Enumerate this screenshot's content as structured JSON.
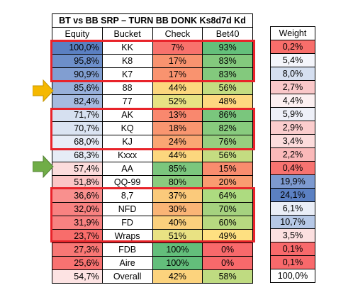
{
  "title": "BT vs BB SRP – TURN BB DONK Ks8d7d Kd",
  "headers": {
    "equity": "Equity",
    "bucket": "Bucket",
    "check": "Check",
    "bet": "Bet40",
    "weight": "Weight"
  },
  "rows": [
    {
      "equity": "100,0%",
      "bucket": "KK",
      "check": "7%",
      "bet": "93%",
      "weight": "0,2%",
      "eq_color": "#5b80c2",
      "check_color": "#f8726c",
      "bet_color": "#64c07b",
      "w_color": "#f86e6b"
    },
    {
      "equity": "95,8%",
      "bucket": "K8",
      "check": "17%",
      "bet": "83%",
      "weight": "5,4%",
      "eq_color": "#6d8fca",
      "check_color": "#f9936f",
      "bet_color": "#83c97d",
      "w_color": "#f4f5fb"
    },
    {
      "equity": "90,9%",
      "bucket": "K7",
      "check": "17%",
      "bet": "83%",
      "weight": "8,0%",
      "eq_color": "#819ed1",
      "check_color": "#f9936f",
      "bet_color": "#83c97d",
      "w_color": "#d5dff0"
    },
    {
      "equity": "85,6%",
      "bucket": "88",
      "check": "44%",
      "bet": "56%",
      "weight": "2,7%",
      "eq_color": "#98b0da",
      "check_color": "#fcd77e",
      "bet_color": "#c4dc81",
      "w_color": "#fac8c9"
    },
    {
      "equity": "82,4%",
      "bucket": "77",
      "check": "52%",
      "bet": "48%",
      "weight": "4,4%",
      "eq_color": "#a6bbe0",
      "check_color": "#e7e283",
      "bet_color": "#fed880",
      "w_color": "#fcf0f1"
    },
    {
      "equity": "71,7%",
      "bucket": "AK",
      "check": "13%",
      "bet": "86%",
      "weight": "5,9%",
      "eq_color": "#d6e0f0",
      "check_color": "#f9886e",
      "bet_color": "#7ac67d",
      "w_color": "#eef0f8"
    },
    {
      "equity": "70,7%",
      "bucket": "KQ",
      "check": "18%",
      "bet": "82%",
      "weight": "2,9%",
      "eq_color": "#dbe4f2",
      "check_color": "#f99670",
      "bet_color": "#88cb7e",
      "w_color": "#fbcdcd"
    },
    {
      "equity": "68,0%",
      "bucket": "KJ",
      "check": "24%",
      "bet": "76%",
      "weight": "3,4%",
      "eq_color": "#e8edf7",
      "check_color": "#faa673",
      "bet_color": "#97cf7f",
      "w_color": "#fcdcdc"
    },
    {
      "equity": "68,3%",
      "bucket": "Kxxx",
      "check": "44%",
      "bet": "56%",
      "weight": "2,2%",
      "eq_color": "#e6ecf6",
      "check_color": "#fcd77e",
      "bet_color": "#c4dc81",
      "w_color": "#fab9b9"
    },
    {
      "equity": "57,4%",
      "bucket": "AA",
      "check": "85%",
      "bet": "15%",
      "weight": "0,4%",
      "eq_color": "#fcdcdc",
      "check_color": "#7bc67d",
      "bet_color": "#f98c6e",
      "w_color": "#f87370"
    },
    {
      "equity": "51,8%",
      "bucket": "QQ-99",
      "check": "80%",
      "bet": "20%",
      "weight": "19,9%",
      "eq_color": "#fbc5c5",
      "check_color": "#8acb7e",
      "bet_color": "#fa9b71",
      "w_color": "#7d9ad0"
    },
    {
      "equity": "36,6%",
      "bucket": "8,7",
      "check": "37%",
      "bet": "64%",
      "weight": "24,1%",
      "eq_color": "#f9908e",
      "check_color": "#fbca7b",
      "bet_color": "#addb80",
      "w_color": "#5b80c2"
    },
    {
      "equity": "32,0%",
      "bucket": "NFD",
      "check": "30%",
      "bet": "70%",
      "weight": "6,1%",
      "eq_color": "#f88281",
      "check_color": "#fab476",
      "bet_color": "#a5d27f",
      "w_color": "#eaeef7"
    },
    {
      "equity": "31,9%",
      "bucket": "FD",
      "check": "40%",
      "bet": "60%",
      "weight": "10,7%",
      "eq_color": "#f88281",
      "check_color": "#fbd07d",
      "bet_color": "#b7d980",
      "w_color": "#b6c8e6"
    },
    {
      "equity": "23,7%",
      "bucket": "Wraps",
      "check": "51%",
      "bet": "49%",
      "weight": "3,5%",
      "eq_color": "#f86d6b",
      "check_color": "#e9e283",
      "bet_color": "#fee081",
      "w_color": "#fce0e0"
    },
    {
      "equity": "27,3%",
      "bucket": "FDB",
      "check": "100%",
      "bet": "0%",
      "weight": "0,1%",
      "eq_color": "#f87775",
      "check_color": "#63be7b",
      "bet_color": "#f8696b",
      "w_color": "#f8696b"
    },
    {
      "equity": "25,6%",
      "bucket": "Aire",
      "check": "100%",
      "bet": "0%",
      "weight": "0,1%",
      "eq_color": "#f87271",
      "check_color": "#63be7b",
      "bet_color": "#f8696b",
      "w_color": "#f8696b"
    },
    {
      "equity": "54,7%",
      "bucket": "Overall",
      "check": "42%",
      "bet": "58%",
      "weight": "100,0%",
      "eq_color": "#fde3e3",
      "check_color": "#fcd37d",
      "bet_color": "#bfdb81",
      "w_color": "#ffffff"
    }
  ],
  "box_color": "#e8232a",
  "arrows": [
    {
      "name": "orange-arrow-icon",
      "color": "#f5b800"
    },
    {
      "name": "green-arrow-icon",
      "color": "#70ad47"
    }
  ]
}
